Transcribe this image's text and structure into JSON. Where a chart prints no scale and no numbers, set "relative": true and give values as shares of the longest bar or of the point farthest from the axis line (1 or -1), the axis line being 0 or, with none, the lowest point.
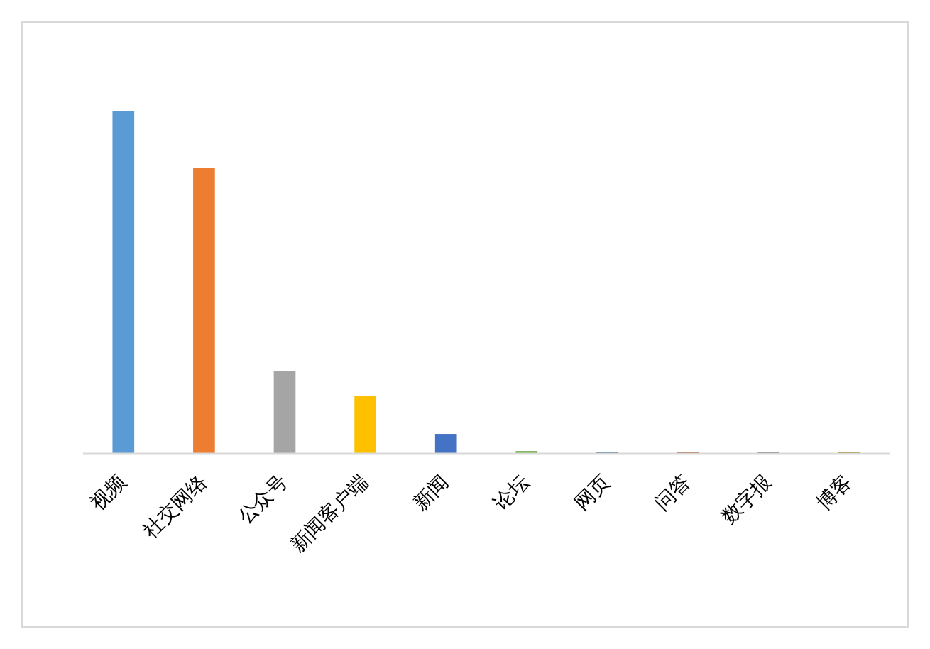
{
  "chart_data": {
    "type": "bar",
    "relative": true,
    "categories": [
      "视频",
      "社交网络",
      "公众号",
      "新闻客户端",
      "新闻",
      "论坛",
      "网页",
      "问答",
      "数字报",
      "博客"
    ],
    "values": [
      1,
      0.834,
      0.241,
      0.17,
      0.058,
      0.008,
      0.004,
      0.004,
      0.004,
      0.004
    ],
    "colors": [
      "#5b9bd5",
      "#ed7d31",
      "#a5a5a5",
      "#ffc000",
      "#4472c4",
      "#70ad47",
      "#255e91",
      "#9e480e",
      "#636363",
      "#997300"
    ]
  }
}
